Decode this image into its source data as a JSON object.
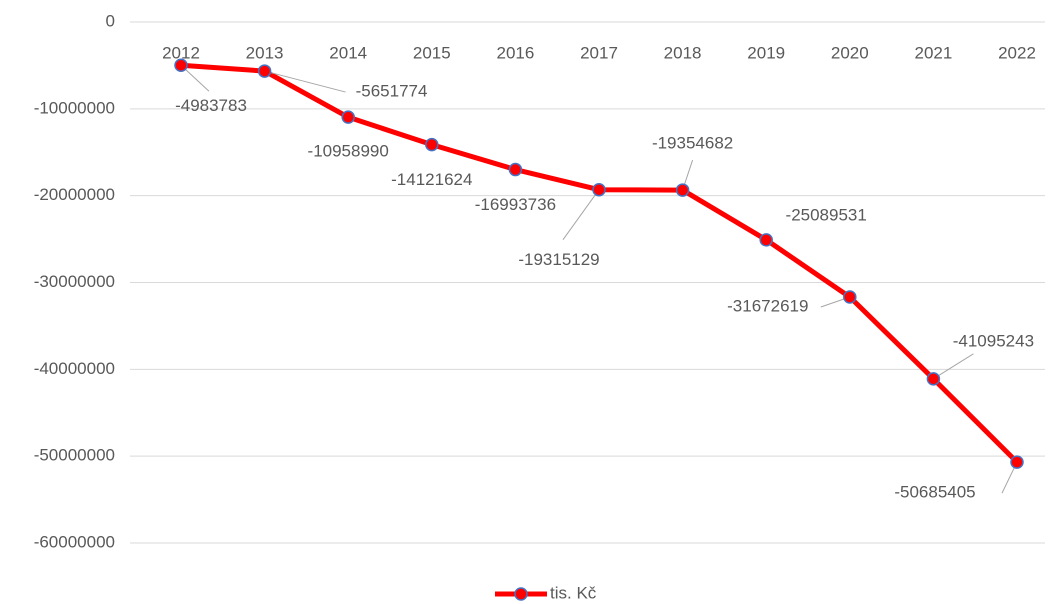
{
  "chart_data": {
    "type": "line",
    "categories": [
      "2012",
      "2013",
      "2014",
      "2015",
      "2016",
      "2017",
      "2018",
      "2019",
      "2020",
      "2021",
      "2022"
    ],
    "series": [
      {
        "name": "tis. Kč",
        "color": "#ff0000",
        "marker_edge_color": "#4472c4",
        "values": [
          -4983783,
          -5651774,
          -10958990,
          -14121624,
          -16993736,
          -19315129,
          -19354682,
          -25089531,
          -31672619,
          -41095243,
          -50685405
        ]
      }
    ],
    "ylim": [
      -60000000,
      0
    ],
    "yticks": [
      0,
      -10000000,
      -20000000,
      -30000000,
      -40000000,
      -50000000,
      -60000000
    ],
    "grid": true,
    "legend": "bottom"
  }
}
